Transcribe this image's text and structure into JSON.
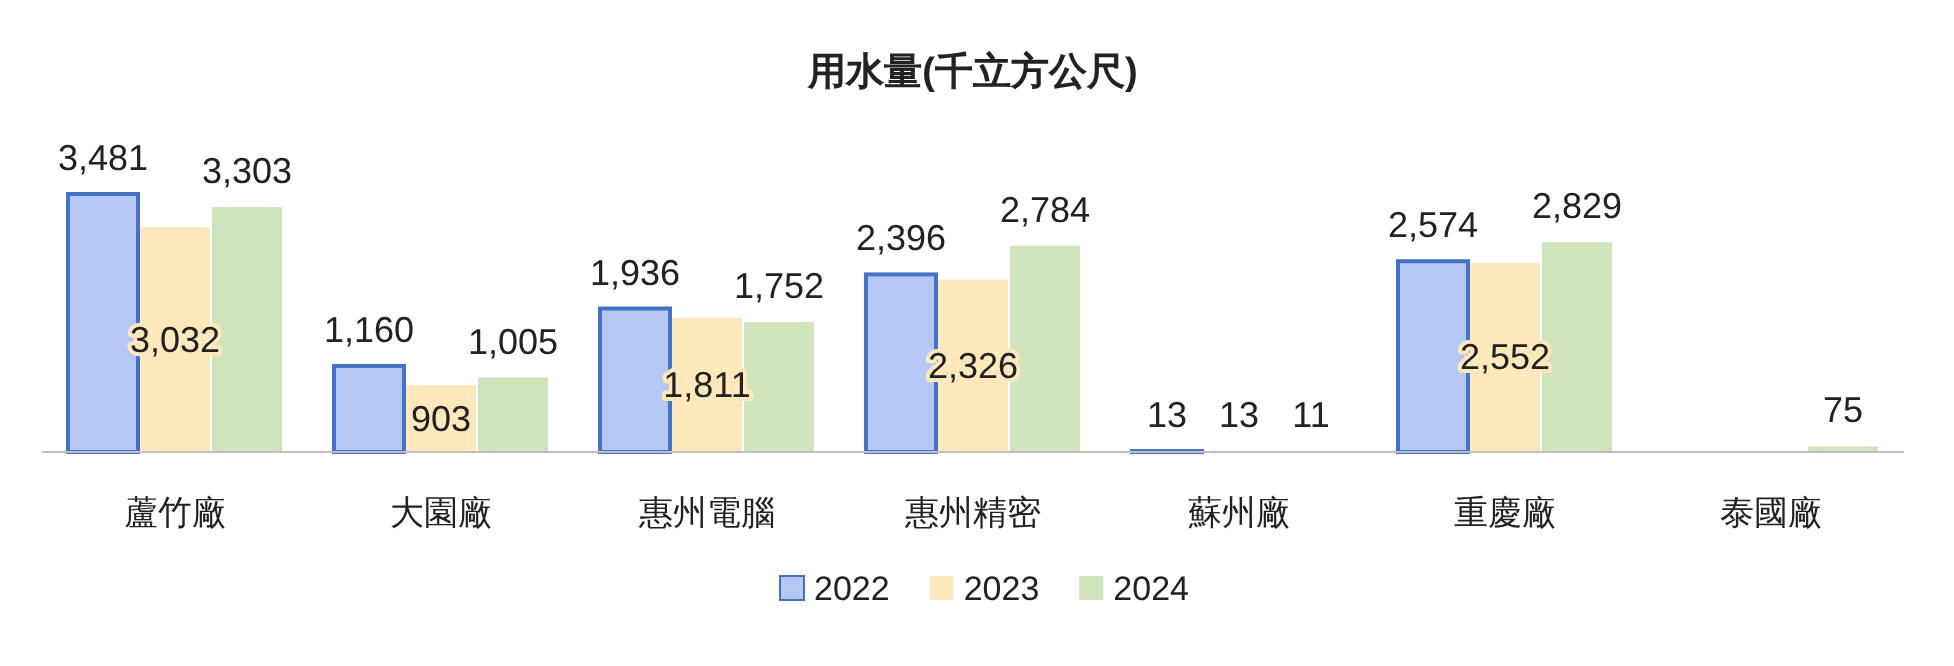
{
  "chart_data": {
    "type": "bar",
    "title": "用水量(千立方公尺)",
    "categories": [
      "蘆竹廠",
      "大園廠",
      "惠州電腦",
      "惠州精密",
      "蘇州廠",
      "重慶廠",
      "泰國廠"
    ],
    "series": [
      {
        "name": "2022",
        "color": "#b4c7f5",
        "values": [
          3481,
          1160,
          1936,
          2396,
          13,
          2574,
          null
        ],
        "value_labels": [
          "3,481",
          "1,160",
          "1,936",
          "2,396",
          "13",
          "2,574",
          null
        ]
      },
      {
        "name": "2023",
        "color": "#ffe8bc",
        "values": [
          3032,
          903,
          1811,
          2326,
          13,
          2552,
          null
        ],
        "value_labels": [
          "3,032",
          "903",
          "1,811",
          "2,326",
          "13",
          "2,552",
          null
        ]
      },
      {
        "name": "2024",
        "color": "#cfe3bc",
        "values": [
          3303,
          1005,
          1752,
          2784,
          11,
          2829,
          75
        ],
        "value_labels": [
          "3,303",
          "1,005",
          "1,752",
          "2,784",
          "11",
          "2,829",
          "75"
        ]
      }
    ],
    "legend": "bottom",
    "grid": false
  }
}
